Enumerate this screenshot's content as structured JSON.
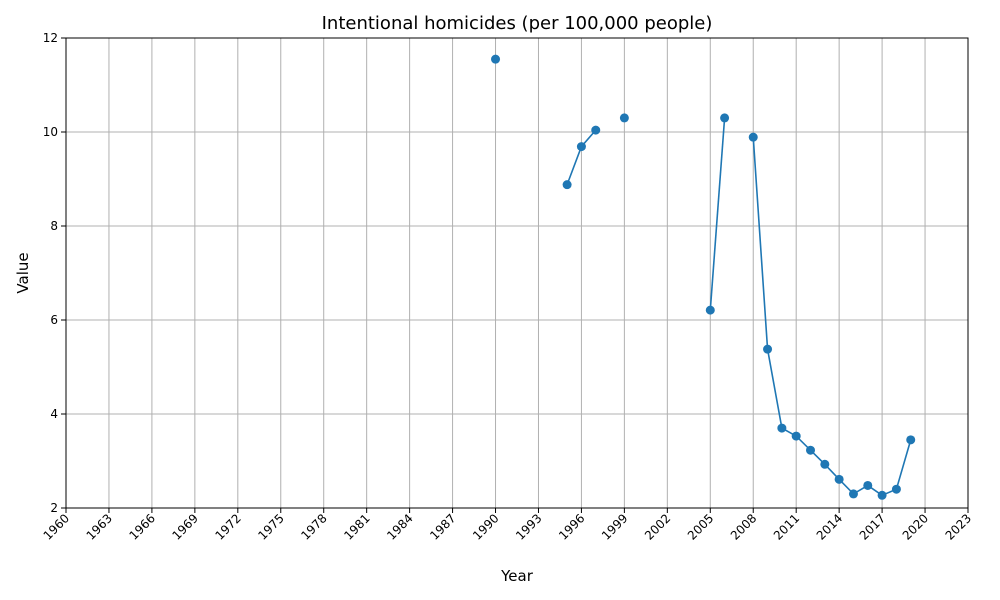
{
  "chart_data": {
    "type": "line",
    "title": "Intentional homicides (per 100,000 people)",
    "xlabel": "Year",
    "ylabel": "Value",
    "xlim": [
      1960,
      2023
    ],
    "ylim": [
      2,
      12
    ],
    "xticks": [
      1960,
      1963,
      1966,
      1969,
      1972,
      1975,
      1978,
      1981,
      1984,
      1987,
      1990,
      1993,
      1996,
      1999,
      2002,
      2005,
      2008,
      2011,
      2014,
      2017,
      2020,
      2023
    ],
    "yticks": [
      2,
      4,
      6,
      8,
      10,
      12
    ],
    "grid": true,
    "color": "#1f77b4",
    "series": [
      {
        "x": [
          1990,
          1991,
          1992,
          1993,
          1994,
          1995,
          1996,
          1997,
          1998,
          1999,
          2000,
          2001,
          2002,
          2003,
          2004,
          2005,
          2006,
          2007,
          2008,
          2009,
          2010,
          2011,
          2012,
          2013,
          2014,
          2015,
          2016,
          2017,
          2018,
          2019
        ],
        "values": [
          11.55,
          null,
          null,
          null,
          null,
          8.88,
          9.69,
          10.04,
          null,
          10.3,
          null,
          null,
          null,
          null,
          null,
          6.21,
          10.3,
          null,
          9.89,
          5.38,
          3.7,
          3.53,
          3.23,
          2.93,
          2.61,
          2.3,
          2.48,
          2.27,
          2.4,
          3.45
        ]
      }
    ]
  }
}
